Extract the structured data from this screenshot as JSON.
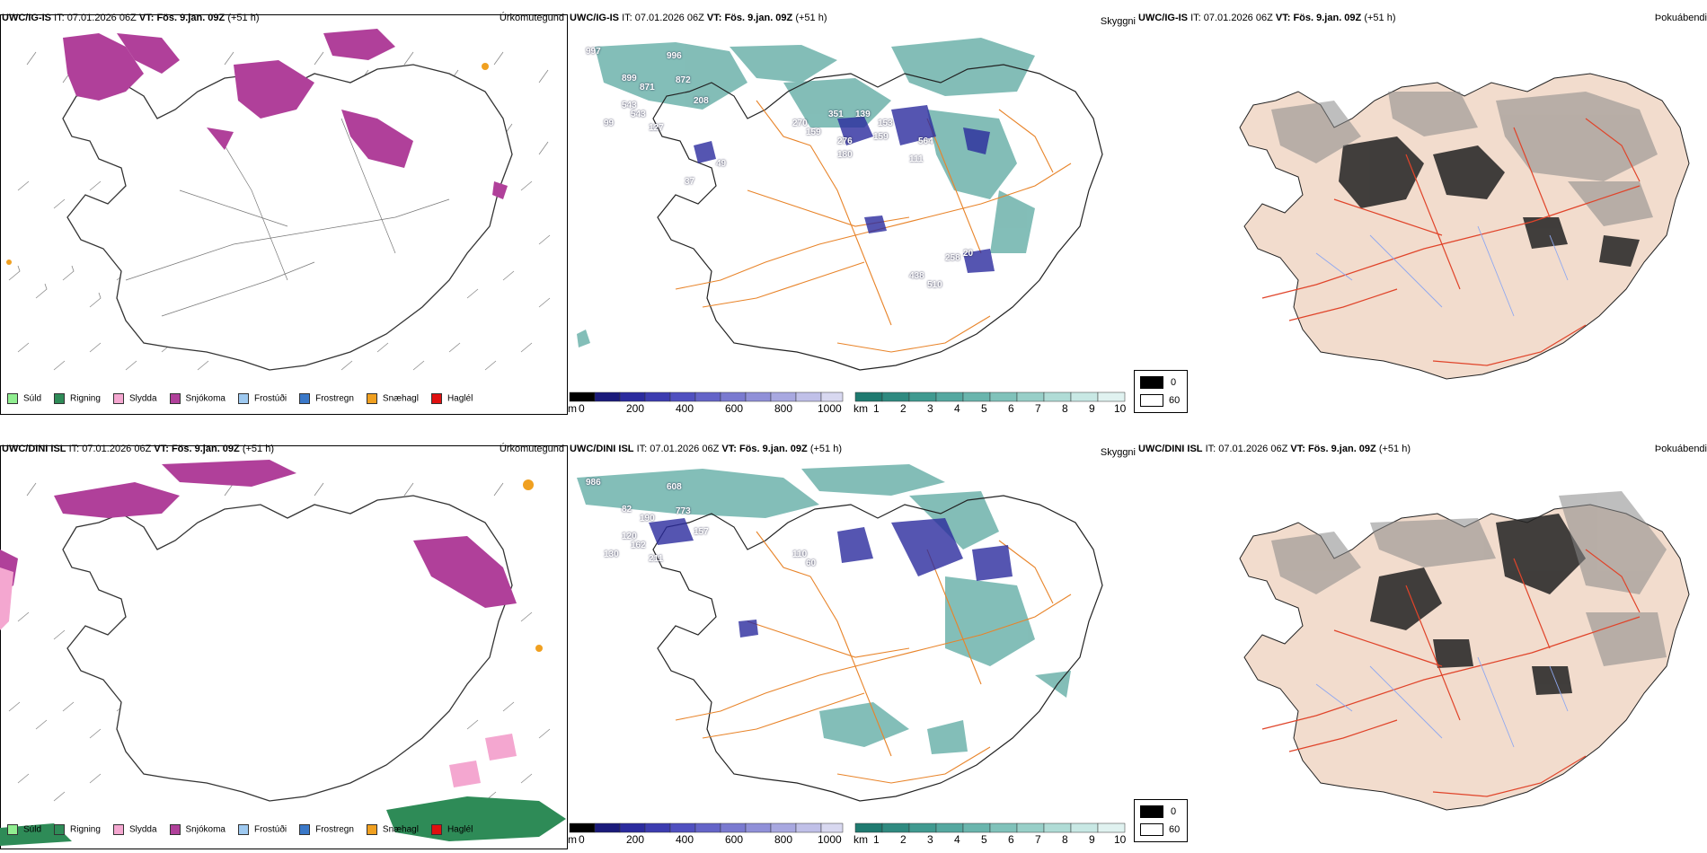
{
  "rows": [
    {
      "model": "UWC/IG-IS",
      "it_label": "IT:",
      "it_value": "07.01.2026 06Z",
      "vt_label": "VT:",
      "vt_value": "Fös. 9.jan. 09Z",
      "lead": "(+51 h)"
    },
    {
      "model": "UWC/DINI ISL",
      "it_label": "IT:",
      "it_value": "07.01.2026 06Z",
      "vt_label": "VT:",
      "vt_value": "Fös. 9.jan. 09Z",
      "lead": "(+51 h)"
    }
  ],
  "panel_titles": {
    "precip": "Úrkomutegund",
    "cloud": "Skyggni",
    "fog": "Þokuábendi"
  },
  "precip_legend": [
    {
      "label": "Súld",
      "color": "#90ee90"
    },
    {
      "label": "Rigning",
      "color": "#2e8b57"
    },
    {
      "label": "Slydda",
      "color": "#f4a7d0"
    },
    {
      "label": "Snjókoma",
      "color": "#b0409a"
    },
    {
      "label": "Frostúði",
      "color": "#9ec9f0"
    },
    {
      "label": "Frostregn",
      "color": "#3a78c8"
    },
    {
      "label": "Snæhagl",
      "color": "#f0a020"
    },
    {
      "label": "Haglél",
      "color": "#e01010"
    }
  ],
  "ceiling_bar": {
    "unit": "m",
    "ticks": [
      "0",
      "200",
      "400",
      "600",
      "800",
      "1000"
    ],
    "colors": [
      "#000000",
      "#1a1a7a",
      "#2b2b9e",
      "#3c3cb0",
      "#5050c0",
      "#6464c8",
      "#7a7ad0",
      "#9090d8",
      "#a8a8e0",
      "#c0c0e8",
      "#d8d8f0"
    ]
  },
  "visibility_bar": {
    "unit": "km",
    "ticks": [
      "1",
      "2",
      "3",
      "4",
      "5",
      "6",
      "7",
      "8",
      "9",
      "10"
    ],
    "colors": [
      "#1f7a70",
      "#2f8a80",
      "#409a90",
      "#55a8a0",
      "#6ab5ad",
      "#80c2ba",
      "#98cfc8",
      "#b0dcd6",
      "#c8e8e4",
      "#e0f2f0"
    ]
  },
  "fog_legend": {
    "black_label": "0",
    "white_label": "60"
  },
  "ceiling_labels_top": [
    "997",
    "899",
    "996",
    "871",
    "872",
    "208",
    "543",
    "543",
    "99",
    "127",
    "270",
    "159",
    "351",
    "139",
    "153",
    "159",
    "276",
    "180",
    "564",
    "49",
    "37",
    "111",
    "438",
    "510",
    "258",
    "20"
  ],
  "ceiling_labels_bottom": [
    "986",
    "82",
    "608",
    "190",
    "773",
    "157",
    "120",
    "162",
    "130",
    "211",
    "110",
    "60"
  ],
  "colors": {
    "snow": "#b0409a",
    "rain": "#2e8b57",
    "sleet": "#f4a7d0",
    "graupel": "#f0a020",
    "roads": "#e8842a",
    "land": "#f2dccd",
    "rivers": "#8fa8f0",
    "coast": "#222222"
  }
}
